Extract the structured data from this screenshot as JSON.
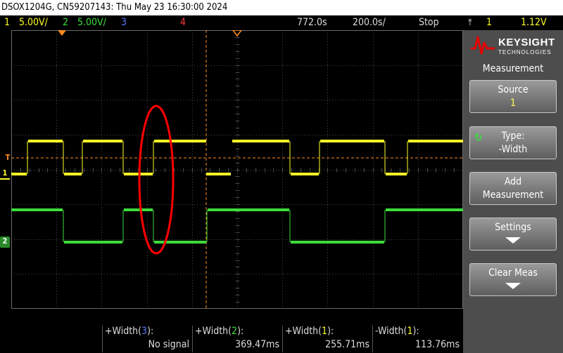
{
  "title": "DSOX1204G, CN59207143: Thu May 23 16:30:00 2024",
  "status": {
    "ch1_num": "1",
    "ch1_scale": "5.00V/",
    "ch2_num": "2",
    "ch2_scale": "5.00V/",
    "ch3_num": "3",
    "ch4_num": "4",
    "delay": "772.0s",
    "timebase": "200.0s/",
    "run_state": "Stop",
    "trigger_source": "1",
    "trigger_level": "1.12V"
  },
  "markers": {
    "trig_level": "T",
    "ch1": "1",
    "ch2": "2"
  },
  "panel": {
    "brand": "KEYSIGHT",
    "brand_sub": "TECHNOLOGIES",
    "title": "Measurement",
    "source_label": "Source",
    "source_value": "1",
    "type_label": "Type:",
    "type_value": "-Width",
    "add_line1": "Add",
    "add_line2": "Measurement",
    "settings_label": "Settings",
    "clear_label": "Clear Meas"
  },
  "measurements": [
    {
      "label": "+Width(",
      "ch": "3",
      "close": "):",
      "value": "No signal"
    },
    {
      "label": "+Width(",
      "ch": "2",
      "close": "):",
      "value": "369.47ms"
    },
    {
      "label": "+Width(",
      "ch": "1",
      "close": "):",
      "value": "255.71ms"
    },
    {
      "label": "-Width(",
      "ch": "1",
      "close": "):",
      "value": "113.76ms"
    }
  ],
  "colors": {
    "ch1": "#ffff28",
    "ch2": "#3cdc3c",
    "ch3": "#5a78ff",
    "ch4": "#ff3c3c",
    "cursor": "#ff8c1e",
    "annotation": "#ff0000",
    "grid": "#4a4a4a"
  }
}
